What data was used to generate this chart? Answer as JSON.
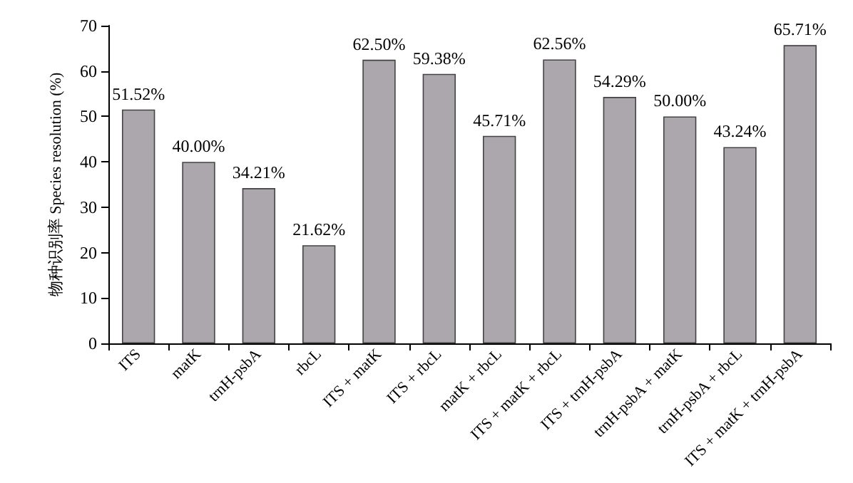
{
  "chart_data": {
    "type": "bar",
    "ylabel": "物种识别率 Species resolution (%)",
    "categories": [
      "ITS",
      "matK",
      "trnH-psbA",
      "rbcL",
      "ITS + matK",
      "ITS + rbcL",
      "matK + rbcL",
      "ITS + matK + rbcL",
      "ITS + trnH-psbA",
      "trnH-psbA + matK",
      "trnH-psbA + rbcL",
      "ITS + matK + trnH-psbA"
    ],
    "values": [
      51.52,
      40.0,
      34.21,
      21.62,
      62.5,
      59.38,
      45.71,
      62.56,
      54.29,
      50.0,
      43.24,
      65.71
    ],
    "value_labels": [
      "51.52%",
      "40.00%",
      "34.21%",
      "21.62%",
      "62.50%",
      "59.38%",
      "45.71%",
      "62.56%",
      "54.29%",
      "50.00%",
      "43.24%",
      "65.71%"
    ],
    "color": "#aba7ad",
    "ylim": [
      0,
      70
    ],
    "yticks": [
      0,
      10,
      20,
      30,
      40,
      50,
      60,
      70
    ],
    "grid": false
  }
}
